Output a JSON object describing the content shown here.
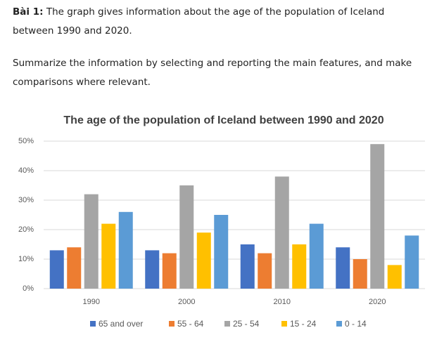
{
  "task": {
    "label": "Bài 1:",
    "text": "The graph gives information about the age of the population of Iceland between 1990 and 2020."
  },
  "instruction": "Summarize the information by selecting and reporting the main features, and make comparisons where relevant.",
  "chart_data": {
    "type": "bar",
    "title": "The age of the population of Iceland between 1990 and 2020",
    "categories": [
      "1990",
      "2000",
      "2010",
      "2020"
    ],
    "series": [
      {
        "name": "65 and over",
        "color": "#4472c4",
        "values": [
          13,
          13,
          15,
          14
        ]
      },
      {
        "name": "55 - 64",
        "color": "#ed7d31",
        "values": [
          14,
          12,
          12,
          10
        ]
      },
      {
        "name": "25 - 54",
        "color": "#a5a5a5",
        "values": [
          32,
          35,
          38,
          49
        ]
      },
      {
        "name": "15 - 24",
        "color": "#ffc000",
        "values": [
          22,
          19,
          15,
          8
        ]
      },
      {
        "name": "0 - 14",
        "color": "#5b9bd5",
        "values": [
          26,
          25,
          22,
          18
        ]
      }
    ],
    "ylim": [
      0,
      50
    ],
    "yticks": [
      {
        "value": 0,
        "label": "0%"
      },
      {
        "value": 10,
        "label": "10%"
      },
      {
        "value": 20,
        "label": "20%"
      },
      {
        "value": 30,
        "label": "30%"
      },
      {
        "value": 40,
        "label": "40%"
      },
      {
        "value": 50,
        "label": "50%"
      }
    ],
    "grid": true,
    "legend": "bottom"
  }
}
